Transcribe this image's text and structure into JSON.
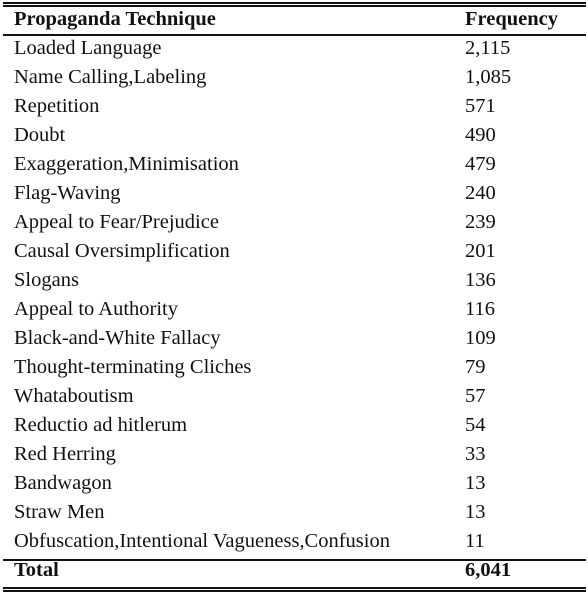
{
  "table": {
    "header": {
      "technique": "Propaganda Technique",
      "frequency": "Frequency"
    },
    "rows": [
      {
        "technique": "Loaded Language",
        "frequency": "2,115"
      },
      {
        "technique": "Name Calling,Labeling",
        "frequency": "1,085"
      },
      {
        "technique": "Repetition",
        "frequency": "571"
      },
      {
        "technique": "Doubt",
        "frequency": "490"
      },
      {
        "technique": "Exaggeration,Minimisation",
        "frequency": "479"
      },
      {
        "technique": "Flag-Waving",
        "frequency": "240"
      },
      {
        "technique": "Appeal to Fear/Prejudice",
        "frequency": "239"
      },
      {
        "technique": "Causal Oversimplification",
        "frequency": "201"
      },
      {
        "technique": "Slogans",
        "frequency": "136"
      },
      {
        "technique": "Appeal to Authority",
        "frequency": "116"
      },
      {
        "technique": "Black-and-White Fallacy",
        "frequency": "109"
      },
      {
        "technique": "Thought-terminating Cliches",
        "frequency": "79"
      },
      {
        "technique": "Whataboutism",
        "frequency": "57"
      },
      {
        "technique": "Reductio ad hitlerum",
        "frequency": "54"
      },
      {
        "technique": "Red Herring",
        "frequency": "33"
      },
      {
        "technique": "Bandwagon",
        "frequency": "13"
      },
      {
        "technique": "Straw Men",
        "frequency": "13"
      },
      {
        "technique": "Obfuscation,Intentional Vagueness,Confusion",
        "frequency": "11"
      }
    ],
    "total": {
      "label": "Total",
      "frequency": "6,041"
    }
  }
}
